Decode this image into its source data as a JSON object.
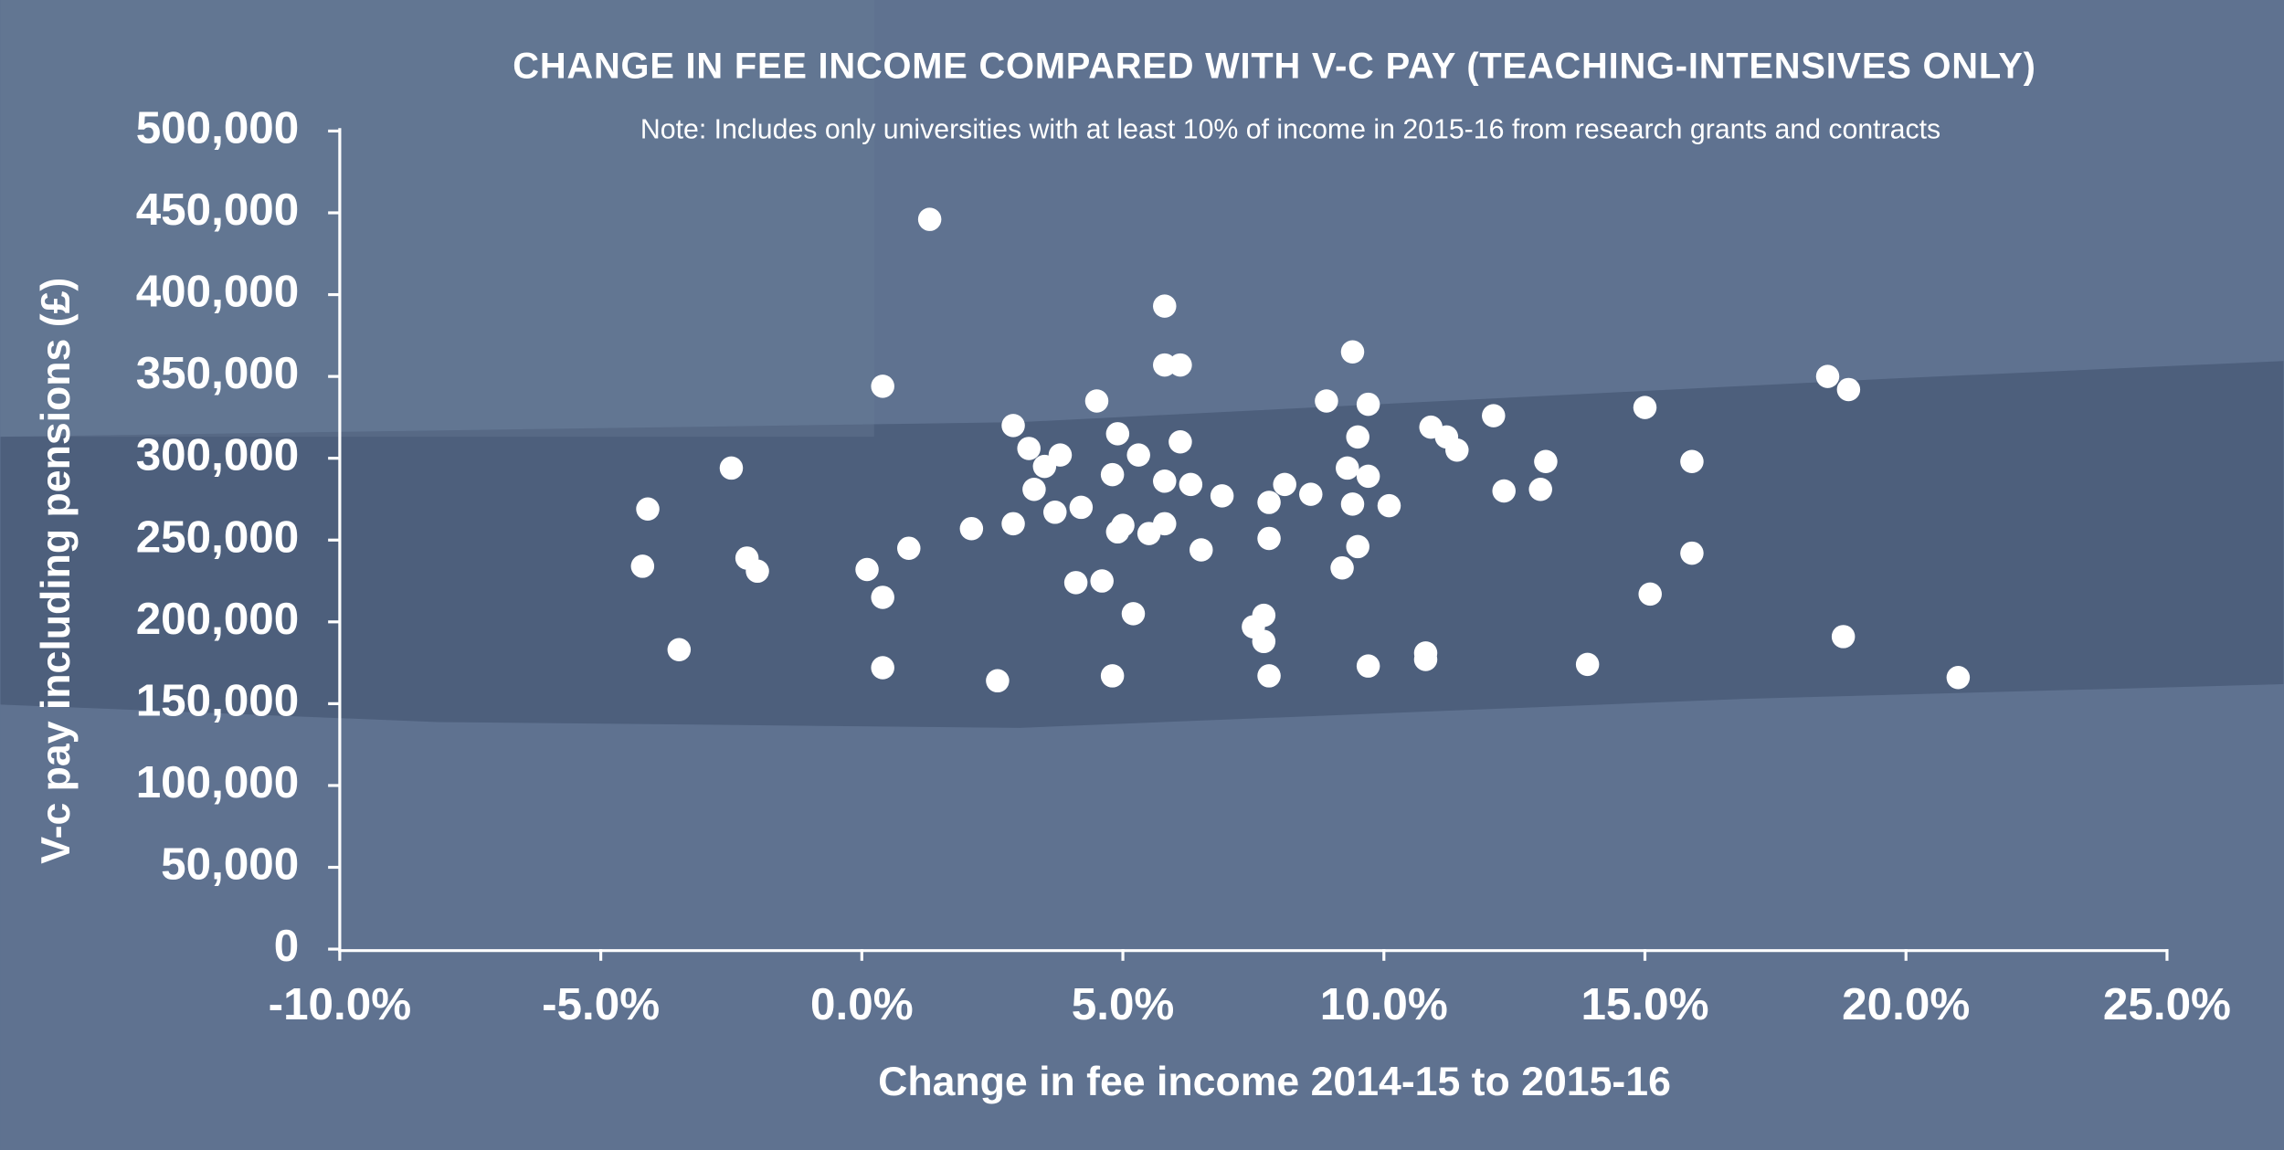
{
  "chart_data": {
    "type": "scatter",
    "title": "CHANGE IN FEE INCOME COMPARED WITH V-C PAY (TEACHING-INTENSIVES ONLY)",
    "subtitle": "Note: Includes only universities with at least 10% of income in 2015-16 from research grants and contracts",
    "x_label": "Change in fee income 2014-15 to 2015-16",
    "y_label": "V-c pay including pensions (£)",
    "color": "#ffffff",
    "xlim": [
      -10,
      25
    ],
    "ylim": [
      0,
      500000
    ],
    "xticks": [
      {
        "value": -10,
        "label": "-10.0%"
      },
      {
        "value": -5,
        "label": "-5.0%"
      },
      {
        "value": 0,
        "label": "0.0%"
      },
      {
        "value": 5,
        "label": "5.0%"
      },
      {
        "value": 10,
        "label": "10.0%"
      },
      {
        "value": 15,
        "label": "15.0%"
      },
      {
        "value": 20,
        "label": "20.0%"
      },
      {
        "value": 25,
        "label": "25.0%"
      }
    ],
    "yticks": [
      0,
      {
        "value": 50000,
        "label": "50,000"
      },
      {
        "value": 100000,
        "label": "100,000"
      },
      {
        "value": 150000,
        "label": "150,000"
      },
      {
        "value": 200000,
        "label": "200,000"
      },
      {
        "value": 250000,
        "label": "250,000"
      },
      {
        "value": 300000,
        "label": "300,000"
      },
      {
        "value": 350000,
        "label": "350,000"
      },
      {
        "value": 400000,
        "label": "400,000"
      },
      {
        "value": 450000,
        "label": "450,000"
      },
      {
        "value": 500000,
        "label": "500,000"
      }
    ],
    "x": [
      1.3,
      5.8,
      0.4,
      9.4,
      5.8,
      6.1,
      4.5,
      8.9,
      9.7,
      15.0,
      18.5,
      18.9,
      12.1,
      2.9,
      4.9,
      10.9,
      11.2,
      9.5,
      6.1,
      3.2,
      5.3,
      3.8,
      11.4,
      3.5,
      -2.5,
      13.1,
      15.9,
      9.3,
      9.7,
      4.8,
      3.3,
      5.8,
      6.3,
      8.1,
      12.3,
      13.0,
      8.6,
      6.9,
      7.8,
      9.4,
      10.1,
      4.2,
      -4.1,
      3.7,
      2.9,
      2.1,
      5.8,
      5.0,
      5.5,
      4.9,
      0.9,
      9.5,
      7.8,
      6.5,
      15.9,
      -2.2,
      -2.0,
      -4.2,
      0.1,
      9.2,
      4.1,
      4.6,
      0.4,
      15.1,
      5.2,
      7.7,
      7.5,
      7.7,
      18.8,
      -3.5,
      10.8,
      10.8,
      9.7,
      13.9,
      0.4,
      7.8,
      4.8,
      21.0,
      2.6
    ],
    "values": [
      446000,
      393000,
      344000,
      365000,
      357000,
      357000,
      335000,
      335000,
      333000,
      331000,
      350000,
      342000,
      326000,
      320000,
      315000,
      319000,
      313000,
      313000,
      310000,
      306000,
      302000,
      302000,
      305000,
      295000,
      294000,
      298000,
      298000,
      294000,
      289000,
      290000,
      281000,
      286000,
      284000,
      284000,
      280000,
      281000,
      278000,
      277000,
      273000,
      272000,
      271000,
      270000,
      269000,
      267000,
      260000,
      257000,
      260000,
      259000,
      254000,
      255000,
      245000,
      246000,
      251000,
      244000,
      242000,
      239000,
      231000,
      234000,
      232000,
      233000,
      224000,
      225000,
      215000,
      217000,
      205000,
      204000,
      197000,
      188000,
      191000,
      183000,
      181000,
      177000,
      173000,
      174000,
      172000,
      167000,
      167000,
      166000,
      164000
    ]
  }
}
